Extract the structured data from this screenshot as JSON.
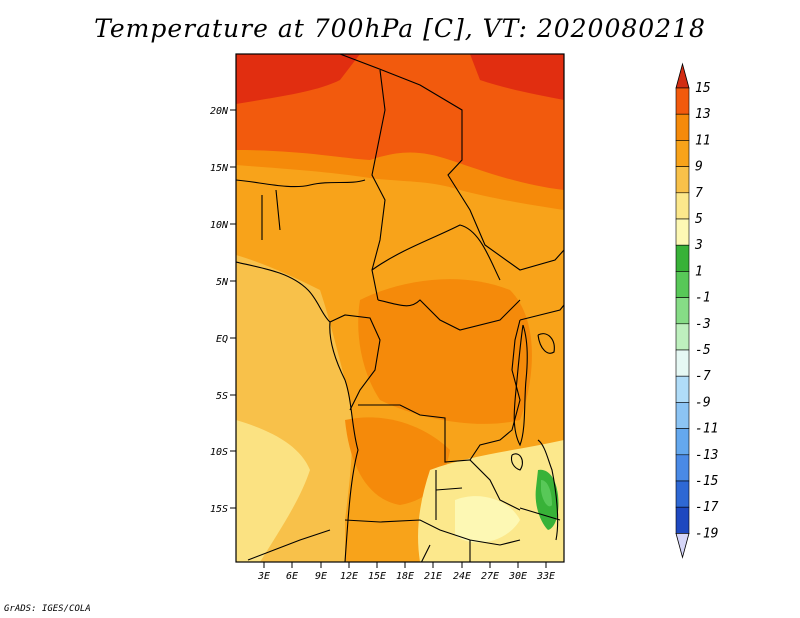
{
  "title": "Temperature at 700hPa [C], VT: 2020080218",
  "credit": "GrADS: IGES/COLA",
  "map": {
    "lat_labels": [
      "20N",
      "15N",
      "10N",
      "5N",
      "EQ",
      "5S",
      "10S",
      "15S"
    ],
    "lon_labels": [
      "3E",
      "6E",
      "9E",
      "12E",
      "15E",
      "18E",
      "21E",
      "24E",
      "27E",
      "30E",
      "33E"
    ]
  },
  "colorbar": {
    "labels": [
      "15",
      "13",
      "11",
      "9",
      "7",
      "5",
      "3",
      "1",
      "-1",
      "-3",
      "-5",
      "-7",
      "-9",
      "-11",
      "-13",
      "-15",
      "-17",
      "-19"
    ],
    "colors": [
      "#e12e10",
      "#f25a0d",
      "#f58a0a",
      "#f8a31a",
      "#f8c14a",
      "#fce88c",
      "#fdf8b4",
      "#38b238",
      "#58c858",
      "#86dc86",
      "#bef0be",
      "#e6f8f4",
      "#b0dcf8",
      "#8cc4f4",
      "#64a8ee",
      "#4a8ae6",
      "#2e68d4",
      "#1e48c0",
      "#1230a0",
      "#0a0a6c",
      "#d6d6f8"
    ],
    "over_color": "#d22c12",
    "under_color": "#d6d6f8"
  }
}
